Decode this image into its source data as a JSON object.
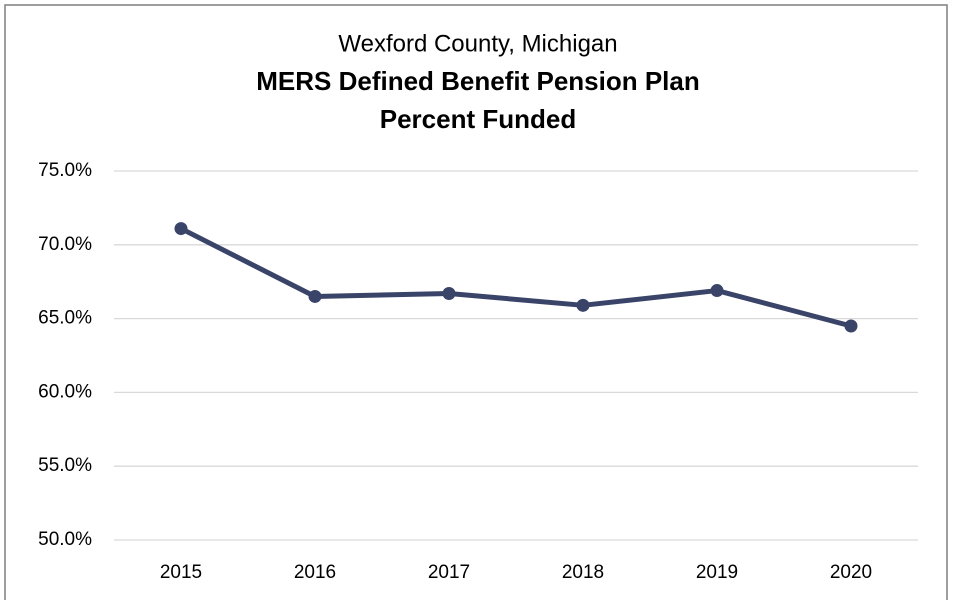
{
  "chart_data": {
    "type": "line",
    "subtitle": "Wexford County, Michigan",
    "title": [
      "MERS Defined Benefit Pension Plan",
      "Percent Funded"
    ],
    "categories": [
      "2015",
      "2016",
      "2017",
      "2018",
      "2019",
      "2020"
    ],
    "series": [
      {
        "name": "Percent Funded",
        "color": "#3a4468",
        "values": [
          71.1,
          66.5,
          66.7,
          65.9,
          66.9,
          64.5
        ]
      }
    ],
    "ylim": [
      50,
      75
    ],
    "yticks": [
      {
        "value": 50,
        "label": "50.0%"
      },
      {
        "value": 55,
        "label": "55.0%"
      },
      {
        "value": 60,
        "label": "60.0%"
      },
      {
        "value": 65,
        "label": "65.0%"
      },
      {
        "value": 70,
        "label": "70.0%"
      },
      {
        "value": 75,
        "label": "75.0%"
      }
    ],
    "grid": true
  }
}
